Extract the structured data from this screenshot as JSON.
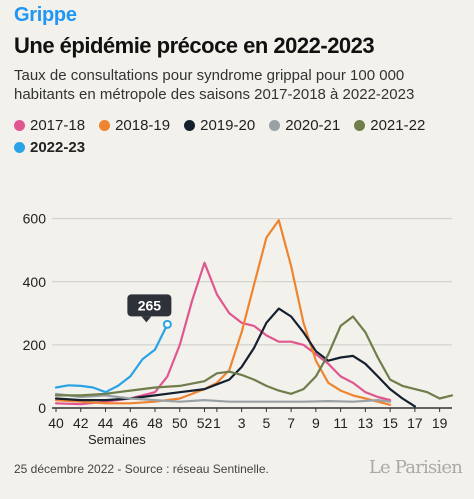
{
  "kicker": "Grippe",
  "title": "Une épidémie précoce en 2022-2023",
  "subtitle": "Taux de consultations pour syndrome grippal pour 100 000 habitants en métropole des saisons 2017-2018 à 2022-2023",
  "legend": [
    {
      "label": "2017-18",
      "color": "#e0578f"
    },
    {
      "label": "2018-19",
      "color": "#ef8430"
    },
    {
      "label": "2019-20",
      "color": "#14202e"
    },
    {
      "label": "2020-21",
      "color": "#9aa1a5"
    },
    {
      "label": "2021-22",
      "color": "#6f7d4b"
    },
    {
      "label": "2022-23",
      "color": "#2aa3e6"
    }
  ],
  "footer": "25 décembre 2022 - Source : réseau Sentinelle.",
  "logo": "Le Parisien",
  "chart_data": {
    "type": "line",
    "xlabel": "Semaines",
    "ylabel": "",
    "ylim": [
      0,
      640
    ],
    "yticks": [
      0,
      200,
      400,
      600
    ],
    "x_tick_labels": [
      "40",
      "42",
      "44",
      "46",
      "48",
      "50",
      "52",
      "1",
      "3",
      "5",
      "7",
      "9",
      "11",
      "13",
      "15",
      "17",
      "19"
    ],
    "x_tick_positions": [
      0,
      2,
      4,
      6,
      8,
      10,
      12,
      13,
      15,
      17,
      19,
      21,
      23,
      25,
      27,
      29,
      31
    ],
    "x_range": [
      0,
      32
    ],
    "grid": true,
    "series": [
      {
        "name": "2017-18",
        "color": "#e0578f",
        "x": [
          0,
          2,
          4,
          6,
          8,
          9,
          10,
          11,
          12,
          13,
          14,
          15,
          16,
          17,
          18,
          19,
          20,
          21,
          22,
          23,
          24,
          25,
          26,
          27
        ],
        "y": [
          15,
          12,
          20,
          30,
          50,
          100,
          200,
          340,
          460,
          360,
          300,
          270,
          260,
          230,
          210,
          210,
          200,
          170,
          140,
          100,
          80,
          50,
          35,
          25
        ]
      },
      {
        "name": "2018-19",
        "color": "#ef8430",
        "x": [
          0,
          2,
          4,
          6,
          8,
          10,
          12,
          13,
          14,
          15,
          16,
          17,
          18,
          19,
          20,
          21,
          22,
          23,
          24,
          25,
          26,
          27
        ],
        "y": [
          25,
          20,
          15,
          15,
          20,
          30,
          60,
          80,
          120,
          240,
          390,
          540,
          595,
          450,
          270,
          150,
          80,
          55,
          40,
          30,
          20,
          10
        ]
      },
      {
        "name": "2019-20",
        "color": "#14202e",
        "x": [
          0,
          2,
          4,
          6,
          8,
          10,
          12,
          14,
          15,
          16,
          17,
          18,
          19,
          20,
          21,
          22,
          23,
          24,
          25,
          26,
          27,
          28,
          29
        ],
        "y": [
          30,
          25,
          25,
          30,
          40,
          50,
          60,
          90,
          130,
          190,
          270,
          315,
          290,
          240,
          180,
          150,
          160,
          165,
          140,
          100,
          60,
          30,
          5
        ]
      },
      {
        "name": "2020-21",
        "color": "#9aa1a5",
        "x": [
          0,
          2,
          4,
          6,
          8,
          10,
          12,
          14,
          16,
          18,
          20,
          22,
          24,
          26,
          27
        ],
        "y": [
          45,
          35,
          40,
          30,
          25,
          20,
          25,
          20,
          20,
          20,
          20,
          22,
          20,
          25,
          20
        ]
      },
      {
        "name": "2021-22",
        "color": "#6f7d4b",
        "x": [
          0,
          2,
          4,
          6,
          8,
          10,
          12,
          13,
          14,
          15,
          16,
          17,
          18,
          19,
          20,
          21,
          22,
          23,
          24,
          25,
          26,
          27,
          28,
          29,
          30,
          31,
          32
        ],
        "y": [
          40,
          40,
          45,
          55,
          65,
          70,
          85,
          110,
          115,
          105,
          90,
          70,
          55,
          45,
          60,
          100,
          170,
          260,
          290,
          240,
          160,
          90,
          70,
          60,
          50,
          30,
          40
        ]
      },
      {
        "name": "2022-23",
        "color": "#2aa3e6",
        "x": [
          0,
          1,
          2,
          3,
          4,
          5,
          6,
          7,
          8,
          9
        ],
        "y": [
          65,
          72,
          70,
          65,
          50,
          70,
          100,
          155,
          185,
          265
        ]
      }
    ],
    "annotations": [
      {
        "series": "2022-23",
        "x": 9,
        "y": 265,
        "text": "265"
      }
    ]
  }
}
